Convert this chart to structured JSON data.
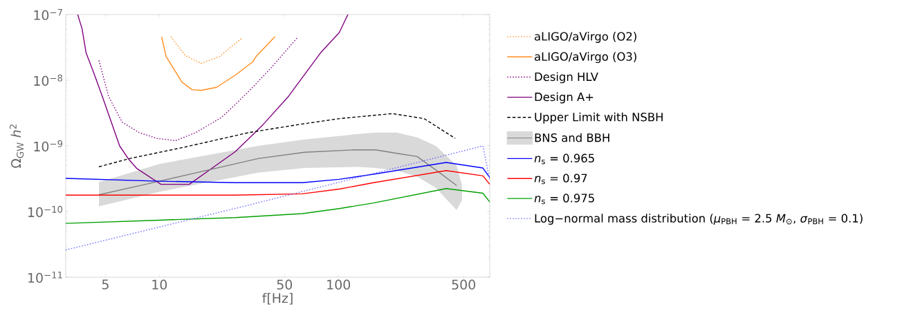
{
  "chart_data": {
    "type": "line",
    "log": "xy",
    "xlabel": "f[Hz]",
    "ylabel": "Ω$_{GW}$ *h*$^{2}$",
    "xlim": [
      3,
      700
    ],
    "ylim": [
      1e-11,
      1e-07
    ],
    "xticks": [
      5,
      10,
      50,
      100,
      500
    ],
    "yticks": [
      {
        "value": 1e-11,
        "label": "10$^{−11}$"
      },
      {
        "value": 1e-10,
        "label": "10$^{−10}$"
      },
      {
        "value": 1e-09,
        "label": "10$^{−9}$"
      },
      {
        "value": 1e-08,
        "label": "10$^{−8}$"
      },
      {
        "value": 1e-07,
        "label": "10$^{−7}$"
      }
    ],
    "legend": "right",
    "series": [
      {
        "name": "aLIGO/aVirgo (O2)",
        "color": "#ff8c1a",
        "line_style": "dotted",
        "x": [
          11.6,
          13.9,
          17.1,
          21.7,
          29
        ],
        "values": [
          4.6e-08,
          2.4e-08,
          1.8e-08,
          2.3e-08,
          4.4e-08
        ]
      },
      {
        "name": "aLIGO/aVirgo (O3)",
        "color": "#ff8c1a",
        "line_style": "solid",
        "x": [
          10.3,
          10.9,
          13.4,
          15.2,
          17.1,
          20.9,
          26.6,
          33.2,
          34.7,
          44.2
        ],
        "values": [
          4.6e-08,
          2.3e-08,
          9.3e-09,
          7.2e-09,
          7e-09,
          7.8e-09,
          1.2e-08,
          1.9e-08,
          2.3e-08,
          4.6e-08
        ]
      },
      {
        "name": "Design HLV",
        "color": "#800080",
        "line_style": "dotted",
        "x": [
          4.6,
          5.2,
          6.2,
          7.7,
          9.7,
          12.3,
          16,
          22.2,
          26.6,
          31.8,
          42.6,
          59.2
        ],
        "values": [
          2e-08,
          5.7e-09,
          2.3e-09,
          1.6e-09,
          1.3e-09,
          1.2e-09,
          1.6e-09,
          2.7e-09,
          4.3e-09,
          6.9e-09,
          1.6e-08,
          4.5e-08
        ]
      },
      {
        "name": "Design A+",
        "color": "#800080",
        "line_style": "solid",
        "x": [
          3.5,
          3.7,
          3.9,
          4.3,
          4.8,
          6.0,
          6.7,
          7.5,
          10.2,
          14.7,
          26.6,
          37.9,
          52.7,
          79.4,
          101,
          113
        ],
        "values": [
          1e-07,
          6.1e-08,
          2.6e-08,
          1.3e-08,
          5.7e-09,
          1e-09,
          6.4e-10,
          4.5e-10,
          2.6e-10,
          2.6e-10,
          8.2e-10,
          2.1e-09,
          5.7e-09,
          2.6e-08,
          5.3e-08,
          1e-07
        ]
      },
      {
        "name": "Upper Limit with NSBH",
        "color": "#000000",
        "line_style": "dashed",
        "x": [
          4.6,
          6.8,
          13.9,
          31.8,
          59.2,
          101,
          200,
          301,
          449
        ],
        "values": [
          4.8e-10,
          6.4e-10,
          9.6e-10,
          1.6e-09,
          2.1e-09,
          2.6e-09,
          3.1e-09,
          2.6e-09,
          1.3e-09
        ]
      },
      {
        "name": "BNS and BBH",
        "color": "#808080",
        "line_style": "solid",
        "x": [
          4.6,
          10,
          35.6,
          64.7,
          124,
          161,
          211,
          275,
          350,
          457,
          490
        ],
        "values": [
          1.8e-10,
          2.9e-10,
          6.4e-10,
          8e-10,
          8.7e-10,
          8.7e-10,
          7.7e-10,
          6.9e-10,
          4.3e-10,
          2.5e-10,
          null
        ],
        "upper": [
          2.8e-10,
          5.3e-10,
          1e-09,
          1.25e-09,
          1.5e-09,
          1.6e-09,
          1.6e-09,
          1.35e-09,
          1e-09,
          5e-10,
          2.5e-10
        ],
        "lower": [
          1.2e-10,
          2e-10,
          3.9e-10,
          4.6e-10,
          4.8e-10,
          4.6e-10,
          4.2e-10,
          3.4e-10,
          2.3e-10,
          1.05e-10,
          1.5e-10
        ]
      },
      {
        "name": "*n*$_{s}$ = 0.965",
        "color": "#0000ff",
        "line_style": "solid",
        "x": [
          3,
          10,
          26.6,
          62.9,
          101,
          157,
          400,
          641,
          700
        ],
        "values": [
          3.2e-10,
          2.9e-10,
          2.75e-10,
          2.75e-10,
          3.1e-10,
          3.7e-10,
          5.6e-10,
          4.6e-10,
          3.3e-10
        ]
      },
      {
        "name": "*n*$_{s}$ = 0.97",
        "color": "#ff0000",
        "line_style": "solid",
        "x": [
          3,
          26.6,
          62.9,
          101,
          157,
          400,
          641,
          700
        ],
        "values": [
          1.78e-10,
          1.78e-10,
          1.86e-10,
          2.2e-10,
          2.75e-10,
          4.2e-10,
          3.5e-10,
          2.6e-10
        ]
      },
      {
        "name": "*n*$_{s}$ = 0.975",
        "color": "#00a000",
        "line_style": "solid",
        "x": [
          3,
          10,
          26.6,
          62.9,
          101,
          157,
          400,
          641,
          700
        ],
        "values": [
          6.6e-11,
          7.4e-11,
          8.1e-11,
          9.3e-11,
          1.11e-10,
          1.35e-10,
          2.24e-10,
          1.9e-10,
          1.4e-10
        ]
      },
      {
        "name": "Log−normal mass distribution (*μ*$_{PBH}$ = 2.5 *M*$_{⊙}$, *σ*$_{PBH}$ = 0.1)",
        "color": "#6666ff",
        "line_style": "dotted",
        "x": [
          3,
          31.8,
          641,
          700
        ],
        "values": [
          2.6e-11,
          1.26e-10,
          1e-09,
          3e-10
        ]
      }
    ]
  }
}
